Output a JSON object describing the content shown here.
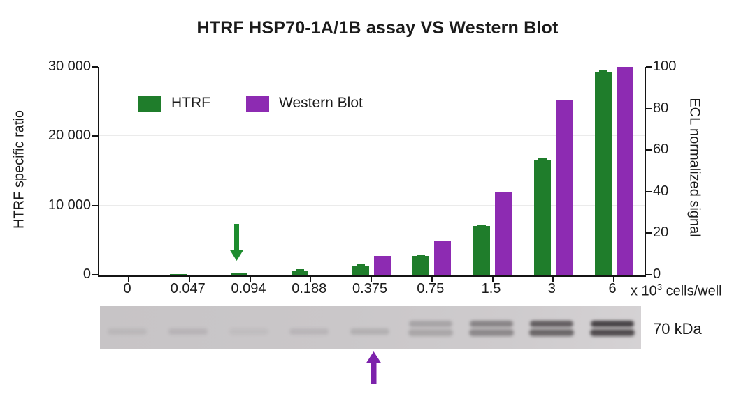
{
  "title": "HTRF HSP70-1A/1B assay VS Western Blot",
  "legend": {
    "htrf": "HTRF",
    "western": "Western Blot"
  },
  "left_axis": {
    "label": "HTRF specific ratio",
    "ticks": [
      {
        "label": "30 000",
        "value": 30000
      },
      {
        "label": "20 000",
        "value": 20000
      },
      {
        "label": "10 000",
        "value": 10000
      },
      {
        "label": "0",
        "value": 0
      }
    ]
  },
  "right_axis": {
    "label": "ECL normalized signal",
    "ticks": [
      {
        "label": "100",
        "value": 100
      },
      {
        "label": "80",
        "value": 80
      },
      {
        "label": "60",
        "value": 60
      },
      {
        "label": "40",
        "value": 40
      },
      {
        "label": "20",
        "value": 20
      },
      {
        "label": "0",
        "value": 0
      }
    ]
  },
  "x_axis": {
    "unit_prefix": "x 10",
    "unit_sup": "3",
    "unit_suffix": "cells/well"
  },
  "colors": {
    "green": "#1f7d2b",
    "purple": "#8d2bb2",
    "green_arrow": "#1d8c2e",
    "purple_arrow": "#7c22ab"
  },
  "chart_data": {
    "type": "bar",
    "title": "HTRF HSP70-1A/1B assay VS Western Blot",
    "categories": [
      "0",
      "0.047",
      "0.094",
      "0.188",
      "0.375",
      "0.75",
      "1.5",
      "3",
      "6"
    ],
    "x_unit": "x 10^3 cells/well",
    "left_label": "HTRF specific ratio",
    "right_label": "ECL normalized signal",
    "left_ylim": [
      0,
      30000
    ],
    "right_ylim": [
      0,
      100
    ],
    "gridlines_left": [
      10000,
      20000
    ],
    "legend_position": "top-left-inside",
    "series": [
      {
        "name": "HTRF",
        "axis": "left",
        "color": "#1f7d2b",
        "values": [
          0,
          150,
          350,
          600,
          1300,
          2700,
          7000,
          16600,
          29300
        ],
        "errors": [
          0,
          0,
          0,
          120,
          150,
          200,
          250,
          350,
          300
        ]
      },
      {
        "name": "Western Blot",
        "axis": "right",
        "color": "#8d2bb2",
        "values": [
          0,
          0,
          0,
          0,
          9,
          16,
          40,
          84,
          100
        ]
      }
    ],
    "annotations": [
      {
        "type": "arrow-down",
        "color": "#1d8c2e",
        "target_category": "0.094",
        "target": "HTRF bar"
      },
      {
        "type": "arrow-up",
        "color": "#7c22ab",
        "target_category": "0.375",
        "target": "western blot lane"
      }
    ]
  },
  "blot": {
    "marker_label": "70 kDa",
    "lanes": [
      {
        "category": "0",
        "bands": 1,
        "intensity": 0.08
      },
      {
        "category": "0.047",
        "bands": 1,
        "intensity": 0.1
      },
      {
        "category": "0.094",
        "bands": 1,
        "intensity": 0.05
      },
      {
        "category": "0.188",
        "bands": 1,
        "intensity": 0.1
      },
      {
        "category": "0.375",
        "bands": 1,
        "intensity": 0.14
      },
      {
        "category": "0.75",
        "bands": 2,
        "intensity": 0.22
      },
      {
        "category": "1.5",
        "bands": 2,
        "intensity": 0.42
      },
      {
        "category": "3",
        "bands": 2,
        "intensity": 0.65
      },
      {
        "category": "6",
        "bands": 2,
        "intensity": 0.82
      }
    ]
  }
}
